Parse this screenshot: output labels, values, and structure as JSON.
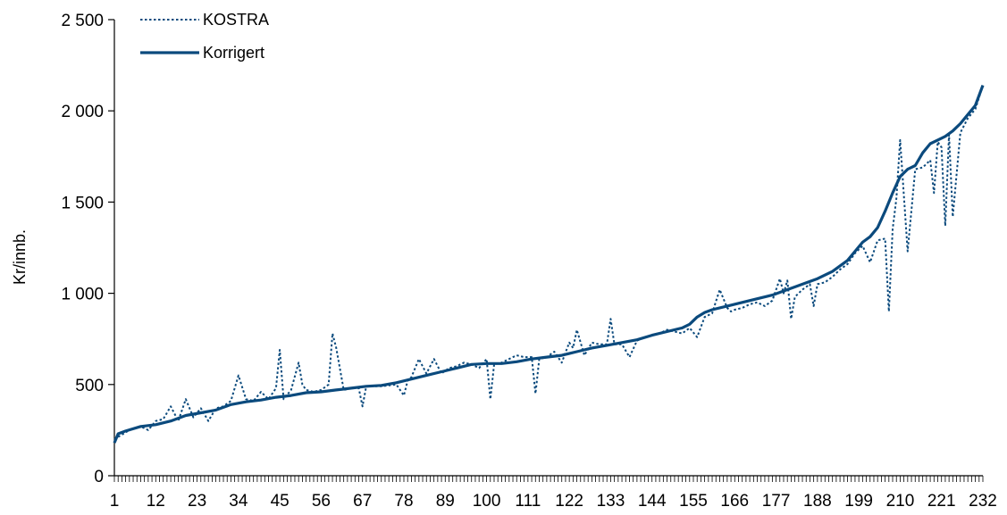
{
  "chart_data": {
    "type": "line",
    "title": "",
    "xlabel": "",
    "ylabel": "Kr/innb.",
    "xlim": [
      1,
      232
    ],
    "ylim": [
      0,
      2500
    ],
    "yticks": [
      0,
      500,
      1000,
      1500,
      2000,
      2500
    ],
    "ytick_labels": [
      "0",
      "500",
      "1 000",
      "1 500",
      "2 000",
      "2 500"
    ],
    "xtick_labels": [
      "1",
      "12",
      "23",
      "34",
      "45",
      "56",
      "67",
      "78",
      "89",
      "100",
      "111",
      "122",
      "133",
      "144",
      "155",
      "166",
      "177",
      "188",
      "199",
      "210",
      "221",
      "232"
    ],
    "grid": false,
    "legend_position": "top-left",
    "colors": {
      "series": "#0b4a7d",
      "axis": "#000000"
    },
    "series": [
      {
        "name": "KOSTRA",
        "style": "dotted",
        "x": [
          1,
          5,
          8,
          10,
          12,
          14,
          16,
          18,
          20,
          22,
          24,
          26,
          28,
          30,
          32,
          34,
          36,
          38,
          40,
          42,
          44,
          45,
          46,
          48,
          50,
          51,
          52,
          54,
          56,
          58,
          59,
          60,
          62,
          64,
          66,
          67,
          68,
          72,
          76,
          78,
          79,
          80,
          82,
          84,
          86,
          88,
          90,
          92,
          94,
          96,
          98,
          100,
          101,
          102,
          104,
          106,
          108,
          110,
          112,
          113,
          114,
          116,
          118,
          120,
          122,
          123,
          124,
          126,
          128,
          130,
          132,
          133,
          134,
          136,
          138,
          140,
          142,
          144,
          146,
          148,
          150,
          152,
          154,
          156,
          158,
          160,
          162,
          164,
          165,
          166,
          168,
          170,
          172,
          174,
          176,
          178,
          179,
          180,
          181,
          182,
          184,
          186,
          187,
          188,
          190,
          192,
          194,
          196,
          198,
          200,
          202,
          204,
          206,
          207,
          208,
          209,
          210,
          212,
          214,
          216,
          218,
          219,
          220,
          221,
          222,
          223,
          224,
          226,
          228,
          230,
          232
        ],
        "values": [
          200,
          250,
          270,
          250,
          300,
          310,
          380,
          300,
          420,
          320,
          370,
          300,
          370,
          380,
          410,
          550,
          420,
          410,
          460,
          420,
          480,
          690,
          420,
          470,
          620,
          500,
          470,
          460,
          470,
          500,
          780,
          700,
          470,
          480,
          480,
          380,
          490,
          490,
          500,
          440,
          520,
          540,
          640,
          560,
          640,
          560,
          590,
          600,
          620,
          610,
          590,
          640,
          420,
          610,
          620,
          640,
          660,
          650,
          650,
          450,
          640,
          650,
          680,
          620,
          730,
          700,
          800,
          660,
          730,
          720,
          720,
          860,
          720,
          720,
          650,
          740,
          760,
          770,
          780,
          800,
          790,
          780,
          810,
          760,
          870,
          890,
          1020,
          920,
          900,
          910,
          920,
          940,
          950,
          930,
          960,
          1080,
          1000,
          1070,
          860,
          980,
          1020,
          1050,
          930,
          1050,
          1060,
          1090,
          1130,
          1160,
          1220,
          1260,
          1170,
          1290,
          1300,
          900,
          1350,
          1520,
          1840,
          1230,
          1680,
          1690,
          1730,
          1550,
          1830,
          1800,
          1370,
          1870,
          1420,
          1880,
          1960,
          2010,
          2140
        ]
      },
      {
        "name": "Korrigert",
        "style": "solid",
        "x": [
          1,
          2,
          4,
          8,
          12,
          16,
          20,
          24,
          28,
          32,
          36,
          40,
          44,
          48,
          52,
          56,
          60,
          64,
          68,
          72,
          76,
          80,
          84,
          88,
          92,
          96,
          100,
          104,
          108,
          112,
          116,
          120,
          124,
          128,
          132,
          136,
          140,
          144,
          148,
          152,
          154,
          156,
          158,
          160,
          164,
          168,
          172,
          176,
          180,
          184,
          188,
          192,
          196,
          198,
          200,
          202,
          204,
          206,
          208,
          210,
          212,
          214,
          216,
          218,
          220,
          222,
          224,
          226,
          228,
          230,
          232
        ],
        "values": [
          180,
          230,
          245,
          270,
          280,
          300,
          330,
          345,
          360,
          390,
          405,
          415,
          430,
          440,
          455,
          460,
          470,
          480,
          490,
          495,
          510,
          530,
          550,
          570,
          590,
          610,
          615,
          615,
          625,
          640,
          650,
          660,
          680,
          700,
          715,
          730,
          745,
          770,
          790,
          810,
          830,
          870,
          895,
          910,
          930,
          950,
          970,
          990,
          1020,
          1050,
          1080,
          1120,
          1180,
          1230,
          1280,
          1310,
          1360,
          1450,
          1550,
          1640,
          1680,
          1700,
          1770,
          1820,
          1840,
          1860,
          1890,
          1930,
          1980,
          2030,
          2140
        ]
      }
    ]
  }
}
